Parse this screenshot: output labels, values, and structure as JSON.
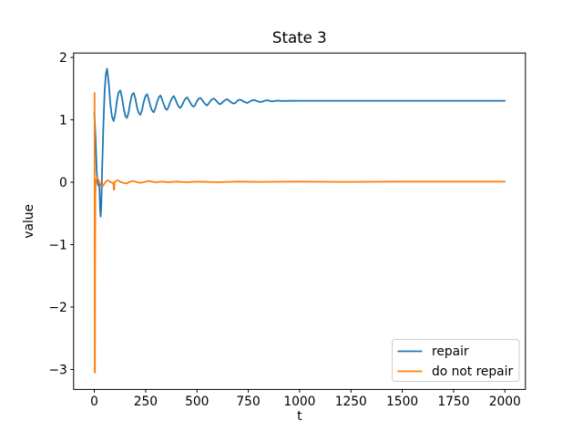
{
  "chart_data": {
    "type": "line",
    "title": "State 3",
    "xlabel": "t",
    "ylabel": "value",
    "xlim": [
      -101,
      2100
    ],
    "ylim": [
      -3.32,
      2.07
    ],
    "xticks": [
      0,
      250,
      500,
      750,
      1000,
      1250,
      1500,
      1750,
      2000
    ],
    "yticks": [
      2,
      1,
      0,
      -1,
      -2,
      -3
    ],
    "grid": false,
    "legend_position": "lower right",
    "background_color": "#ffffff",
    "spine_color": "#000000",
    "series": [
      {
        "name": "repair",
        "color": "#1f77b4",
        "points": [
          [
            0,
            1.12
          ],
          [
            6,
            0.7
          ],
          [
            12,
            0.15
          ],
          [
            16,
            0
          ],
          [
            19,
            -0.05
          ],
          [
            22,
            0.02
          ],
          [
            25,
            -0.1
          ],
          [
            28,
            -0.45
          ],
          [
            31,
            -0.55
          ],
          [
            34,
            -0.35
          ],
          [
            38,
            0.2
          ],
          [
            44,
            0.9
          ],
          [
            50,
            1.45
          ],
          [
            56,
            1.73
          ],
          [
            62,
            1.82
          ],
          [
            70,
            1.6
          ],
          [
            78,
            1.25
          ],
          [
            86,
            1.05
          ],
          [
            94,
            0.98
          ],
          [
            102,
            1.1
          ],
          [
            110,
            1.3
          ],
          [
            118,
            1.44
          ],
          [
            127,
            1.47
          ],
          [
            135,
            1.35
          ],
          [
            143,
            1.18
          ],
          [
            151,
            1.06
          ],
          [
            159,
            1.03
          ],
          [
            167,
            1.12
          ],
          [
            175,
            1.28
          ],
          [
            183,
            1.4
          ],
          [
            192,
            1.43
          ],
          [
            200,
            1.34
          ],
          [
            208,
            1.2
          ],
          [
            216,
            1.11
          ],
          [
            224,
            1.08
          ],
          [
            232,
            1.15
          ],
          [
            240,
            1.28
          ],
          [
            249,
            1.38
          ],
          [
            257,
            1.41
          ],
          [
            265,
            1.33
          ],
          [
            273,
            1.22
          ],
          [
            281,
            1.15
          ],
          [
            289,
            1.12
          ],
          [
            297,
            1.18
          ],
          [
            305,
            1.28
          ],
          [
            314,
            1.36
          ],
          [
            322,
            1.39
          ],
          [
            330,
            1.33
          ],
          [
            338,
            1.25
          ],
          [
            346,
            1.18
          ],
          [
            354,
            1.16
          ],
          [
            362,
            1.21
          ],
          [
            370,
            1.29
          ],
          [
            379,
            1.35
          ],
          [
            387,
            1.38
          ],
          [
            395,
            1.33
          ],
          [
            403,
            1.26
          ],
          [
            411,
            1.21
          ],
          [
            419,
            1.19
          ],
          [
            427,
            1.23
          ],
          [
            435,
            1.29
          ],
          [
            444,
            1.34
          ],
          [
            452,
            1.36
          ],
          [
            460,
            1.32
          ],
          [
            468,
            1.27
          ],
          [
            476,
            1.23
          ],
          [
            484,
            1.21
          ],
          [
            492,
            1.24
          ],
          [
            500,
            1.3
          ],
          [
            509,
            1.34
          ],
          [
            517,
            1.35
          ],
          [
            525,
            1.32
          ],
          [
            533,
            1.28
          ],
          [
            541,
            1.25
          ],
          [
            549,
            1.23
          ],
          [
            557,
            1.26
          ],
          [
            565,
            1.3
          ],
          [
            574,
            1.33
          ],
          [
            582,
            1.34
          ],
          [
            590,
            1.32
          ],
          [
            598,
            1.29
          ],
          [
            606,
            1.26
          ],
          [
            614,
            1.25
          ],
          [
            622,
            1.27
          ],
          [
            630,
            1.3
          ],
          [
            639,
            1.32
          ],
          [
            647,
            1.33
          ],
          [
            655,
            1.31
          ],
          [
            663,
            1.29
          ],
          [
            671,
            1.27
          ],
          [
            679,
            1.26
          ],
          [
            687,
            1.27
          ],
          [
            695,
            1.3
          ],
          [
            704,
            1.32
          ],
          [
            712,
            1.32
          ],
          [
            720,
            1.31
          ],
          [
            728,
            1.29
          ],
          [
            736,
            1.28
          ],
          [
            744,
            1.27
          ],
          [
            752,
            1.28
          ],
          [
            760,
            1.3
          ],
          [
            769,
            1.31
          ],
          [
            777,
            1.32
          ],
          [
            785,
            1.31
          ],
          [
            793,
            1.3
          ],
          [
            801,
            1.29
          ],
          [
            809,
            1.285
          ],
          [
            817,
            1.29
          ],
          [
            825,
            1.3
          ],
          [
            834,
            1.308
          ],
          [
            842,
            1.312
          ],
          [
            850,
            1.308
          ],
          [
            858,
            1.3
          ],
          [
            866,
            1.295
          ],
          [
            874,
            1.297
          ],
          [
            882,
            1.303
          ],
          [
            890,
            1.307
          ],
          [
            900,
            1.305
          ],
          [
            915,
            1.302
          ],
          [
            930,
            1.303
          ],
          [
            950,
            1.304
          ],
          [
            1000,
            1.305
          ],
          [
            1100,
            1.305
          ],
          [
            1300,
            1.305
          ],
          [
            1600,
            1.305
          ],
          [
            2000,
            1.305
          ]
        ]
      },
      {
        "name": "do not repair",
        "color": "#ff7f0e",
        "points": [
          [
            0,
            1.43
          ],
          [
            1,
            1.43
          ],
          [
            2,
            -3.05
          ],
          [
            3,
            -3.05
          ],
          [
            4,
            -1.0
          ],
          [
            5,
            -0.2
          ],
          [
            7,
            0
          ],
          [
            10,
            0.05
          ],
          [
            14,
            0.07
          ],
          [
            20,
            0.04
          ],
          [
            26,
            -0.02
          ],
          [
            33,
            -0.06
          ],
          [
            40,
            -0.07
          ],
          [
            48,
            -0.03
          ],
          [
            56,
            0.01
          ],
          [
            64,
            0.03
          ],
          [
            72,
            0.02
          ],
          [
            80,
            0
          ],
          [
            88,
            -0.01
          ],
          [
            93,
            -0.01
          ],
          [
            95,
            -0.12
          ],
          [
            97,
            -0.12
          ],
          [
            98,
            0
          ],
          [
            105,
            0.02
          ],
          [
            115,
            0.03
          ],
          [
            125,
            0.01
          ],
          [
            140,
            -0.01
          ],
          [
            155,
            -0.02
          ],
          [
            170,
            0
          ],
          [
            185,
            0.02
          ],
          [
            200,
            0.01
          ],
          [
            220,
            -0.01
          ],
          [
            240,
            0
          ],
          [
            260,
            0.02
          ],
          [
            280,
            0.01
          ],
          [
            300,
            0
          ],
          [
            330,
            0.01
          ],
          [
            360,
            0
          ],
          [
            400,
            0.01
          ],
          [
            450,
            0
          ],
          [
            500,
            0.01
          ],
          [
            600,
            0
          ],
          [
            700,
            0.01
          ],
          [
            800,
            0.005
          ],
          [
            1000,
            0.01
          ],
          [
            1200,
            0.005
          ],
          [
            1500,
            0.01
          ],
          [
            2000,
            0.01
          ]
        ]
      }
    ]
  }
}
